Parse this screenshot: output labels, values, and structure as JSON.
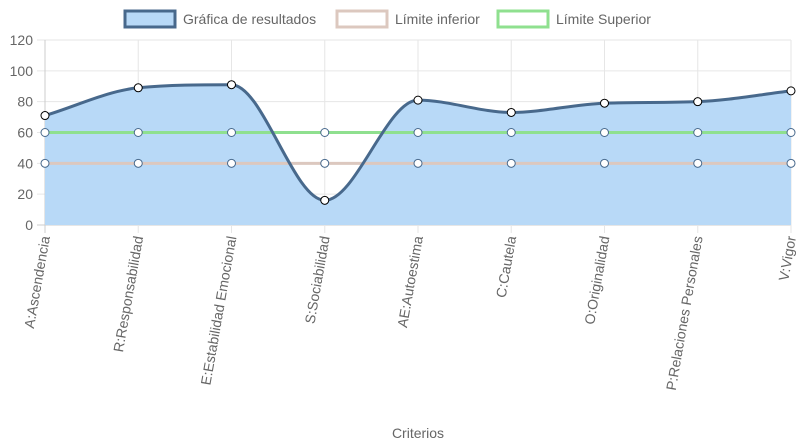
{
  "chart_data": {
    "type": "line",
    "categories": [
      "A:Ascendencia",
      "R:Responsabilidad",
      "E:Estabilidad Emocional",
      "S:Sociabilidad",
      "AE:Autoestima",
      "C:Cautela",
      "O:Originalidad",
      "P:Relaciones Personales",
      "V:Vigor"
    ],
    "series": [
      {
        "name": "Gráfica de resultados",
        "values": [
          71,
          89,
          91,
          16,
          81,
          73,
          79,
          80,
          87
        ],
        "line_color": "#48698c",
        "fill_color": "#b8d9f7",
        "filled": true,
        "smooth": true
      },
      {
        "name": "Límite inferior",
        "values": [
          40,
          40,
          40,
          40,
          40,
          40,
          40,
          40,
          40
        ],
        "line_color": "#dcc8bf",
        "fill_color": "#ffffff",
        "filled": false,
        "smooth": false
      },
      {
        "name": "Límite Superior",
        "values": [
          60,
          60,
          60,
          60,
          60,
          60,
          60,
          60,
          60
        ],
        "line_color": "#8fe08f",
        "fill_color": "#ffffff",
        "filled": false,
        "smooth": false
      }
    ],
    "xlabel": "Criterios",
    "ylabel": "",
    "ylim": [
      0,
      120
    ],
    "yticks": [
      0,
      20,
      40,
      60,
      80,
      100,
      120
    ],
    "grid": true,
    "legend_position": "top"
  }
}
